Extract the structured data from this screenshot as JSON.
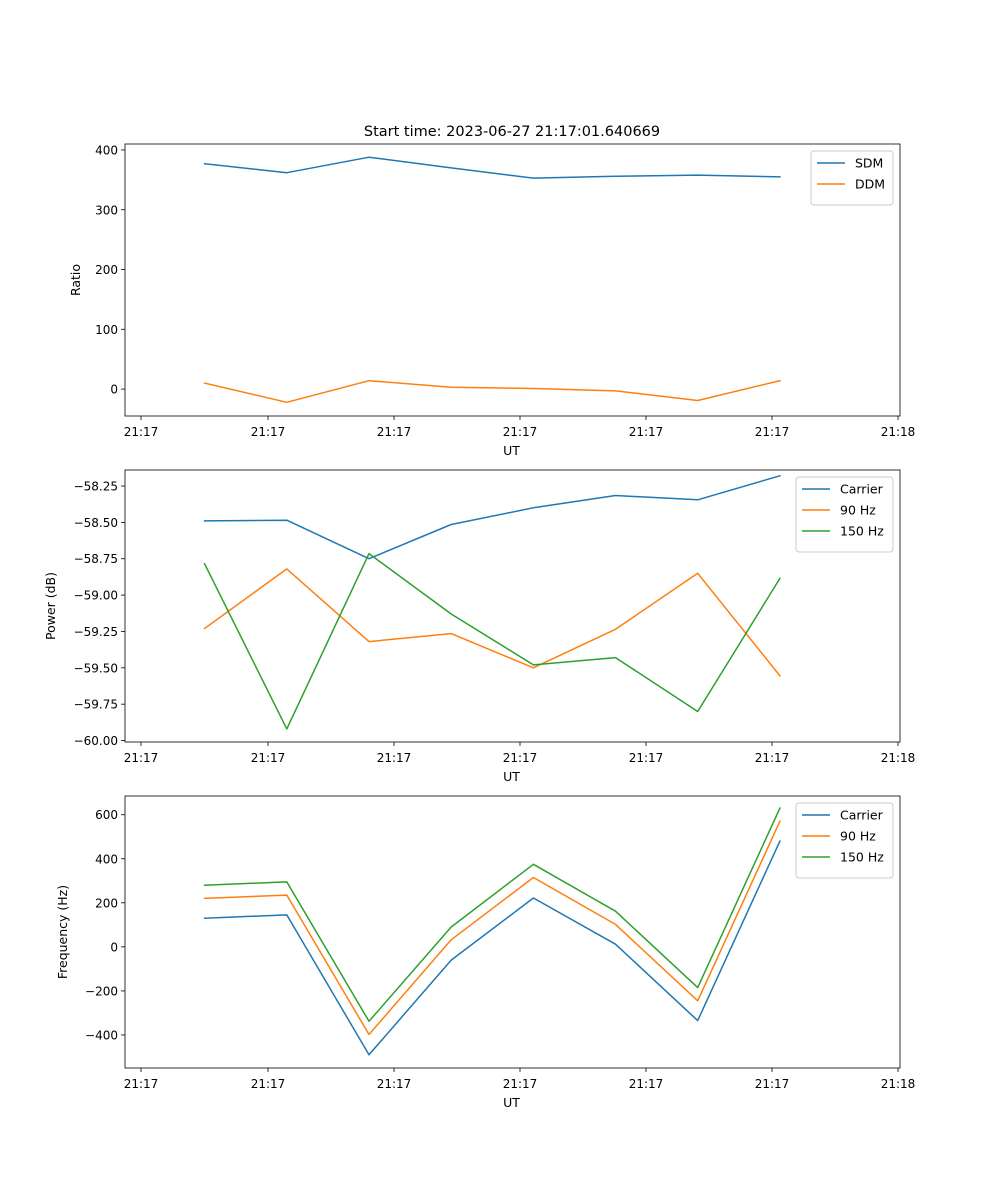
{
  "figure": {
    "suptitle": "Start time: 2023-06-27 21:17:01.640669"
  },
  "colors": {
    "blue": "#1f77b4",
    "orange": "#ff7f0e",
    "green": "#2ca02c"
  },
  "chart_data": [
    {
      "type": "line",
      "title": "Start time: 2023-06-27 21:17:01.640669",
      "xlabel": "UT",
      "ylabel": "Ratio",
      "x_ticks": [
        "21:17",
        "21:17",
        "21:17",
        "21:17",
        "21:17",
        "21:17",
        "21:18"
      ],
      "x": [
        0.5,
        1.15,
        1.8,
        2.45,
        3.1,
        3.75,
        4.4,
        5.05
      ],
      "xlim": [
        -0.13,
        6.0
      ],
      "ylim": [
        -45,
        410
      ],
      "y_ticks": [
        0,
        100,
        200,
        300,
        400
      ],
      "y_tick_labels": [
        "0",
        "100",
        "200",
        "300",
        "400"
      ],
      "legend": "top-right",
      "grid": false,
      "series": [
        {
          "name": "SDM",
          "color": "#1f77b4",
          "values": [
            377,
            362,
            388,
            370,
            353,
            356,
            358,
            355
          ]
        },
        {
          "name": "DDM",
          "color": "#ff7f0e",
          "values": [
            10,
            -22,
            14,
            3,
            1,
            -3,
            -19,
            14
          ]
        }
      ]
    },
    {
      "type": "line",
      "title": "",
      "xlabel": "UT",
      "ylabel": "Power (dB)",
      "x_ticks": [
        "21:17",
        "21:17",
        "21:17",
        "21:17",
        "21:17",
        "21:17",
        "21:18"
      ],
      "x": [
        0.5,
        1.15,
        1.8,
        2.45,
        3.1,
        3.75,
        4.4,
        5.05
      ],
      "xlim": [
        -0.13,
        6.0
      ],
      "ylim": [
        -60.01,
        -58.14
      ],
      "y_ticks": [
        -60.0,
        -59.75,
        -59.5,
        -59.25,
        -59.0,
        -58.75,
        -58.5,
        -58.25
      ],
      "y_tick_labels": [
        "−60.00",
        "−59.75",
        "−59.50",
        "−59.25",
        "−59.00",
        "−58.75",
        "−58.50",
        "−58.25"
      ],
      "legend": "top-right",
      "grid": false,
      "series": [
        {
          "name": "Carrier",
          "color": "#1f77b4",
          "values": [
            -58.49,
            -58.485,
            -58.75,
            -58.515,
            -58.4,
            -58.315,
            -58.345,
            -58.18
          ]
        },
        {
          "name": "90 Hz",
          "color": "#ff7f0e",
          "values": [
            -59.23,
            -58.82,
            -59.32,
            -59.265,
            -59.5,
            -59.235,
            -58.85,
            -59.555
          ]
        },
        {
          "name": "150 Hz",
          "color": "#2ca02c",
          "values": [
            -58.785,
            -59.92,
            -58.715,
            -59.13,
            -59.48,
            -59.43,
            -59.8,
            -58.885
          ]
        }
      ]
    },
    {
      "type": "line",
      "title": "",
      "xlabel": "UT",
      "ylabel": "Frequency (Hz)",
      "x_ticks": [
        "21:17",
        "21:17",
        "21:17",
        "21:17",
        "21:17",
        "21:17",
        "21:18"
      ],
      "x": [
        0.5,
        1.15,
        1.8,
        2.45,
        3.1,
        3.75,
        4.4,
        5.05
      ],
      "xlim": [
        -0.13,
        6.0
      ],
      "ylim": [
        -550,
        685
      ],
      "y_ticks": [
        -400,
        -200,
        0,
        200,
        400,
        600
      ],
      "y_tick_labels": [
        "−400",
        "−200",
        "0",
        "200",
        "400",
        "600"
      ],
      "legend": "top-right",
      "grid": false,
      "series": [
        {
          "name": "Carrier",
          "color": "#1f77b4",
          "values": [
            130,
            145,
            -490,
            -60,
            222,
            12,
            -335,
            480
          ]
        },
        {
          "name": "90 Hz",
          "color": "#ff7f0e",
          "values": [
            220,
            235,
            -398,
            32,
            315,
            102,
            -245,
            570
          ]
        },
        {
          "name": "150 Hz",
          "color": "#2ca02c",
          "values": [
            280,
            295,
            -338,
            90,
            375,
            162,
            -185,
            630
          ]
        }
      ]
    }
  ]
}
